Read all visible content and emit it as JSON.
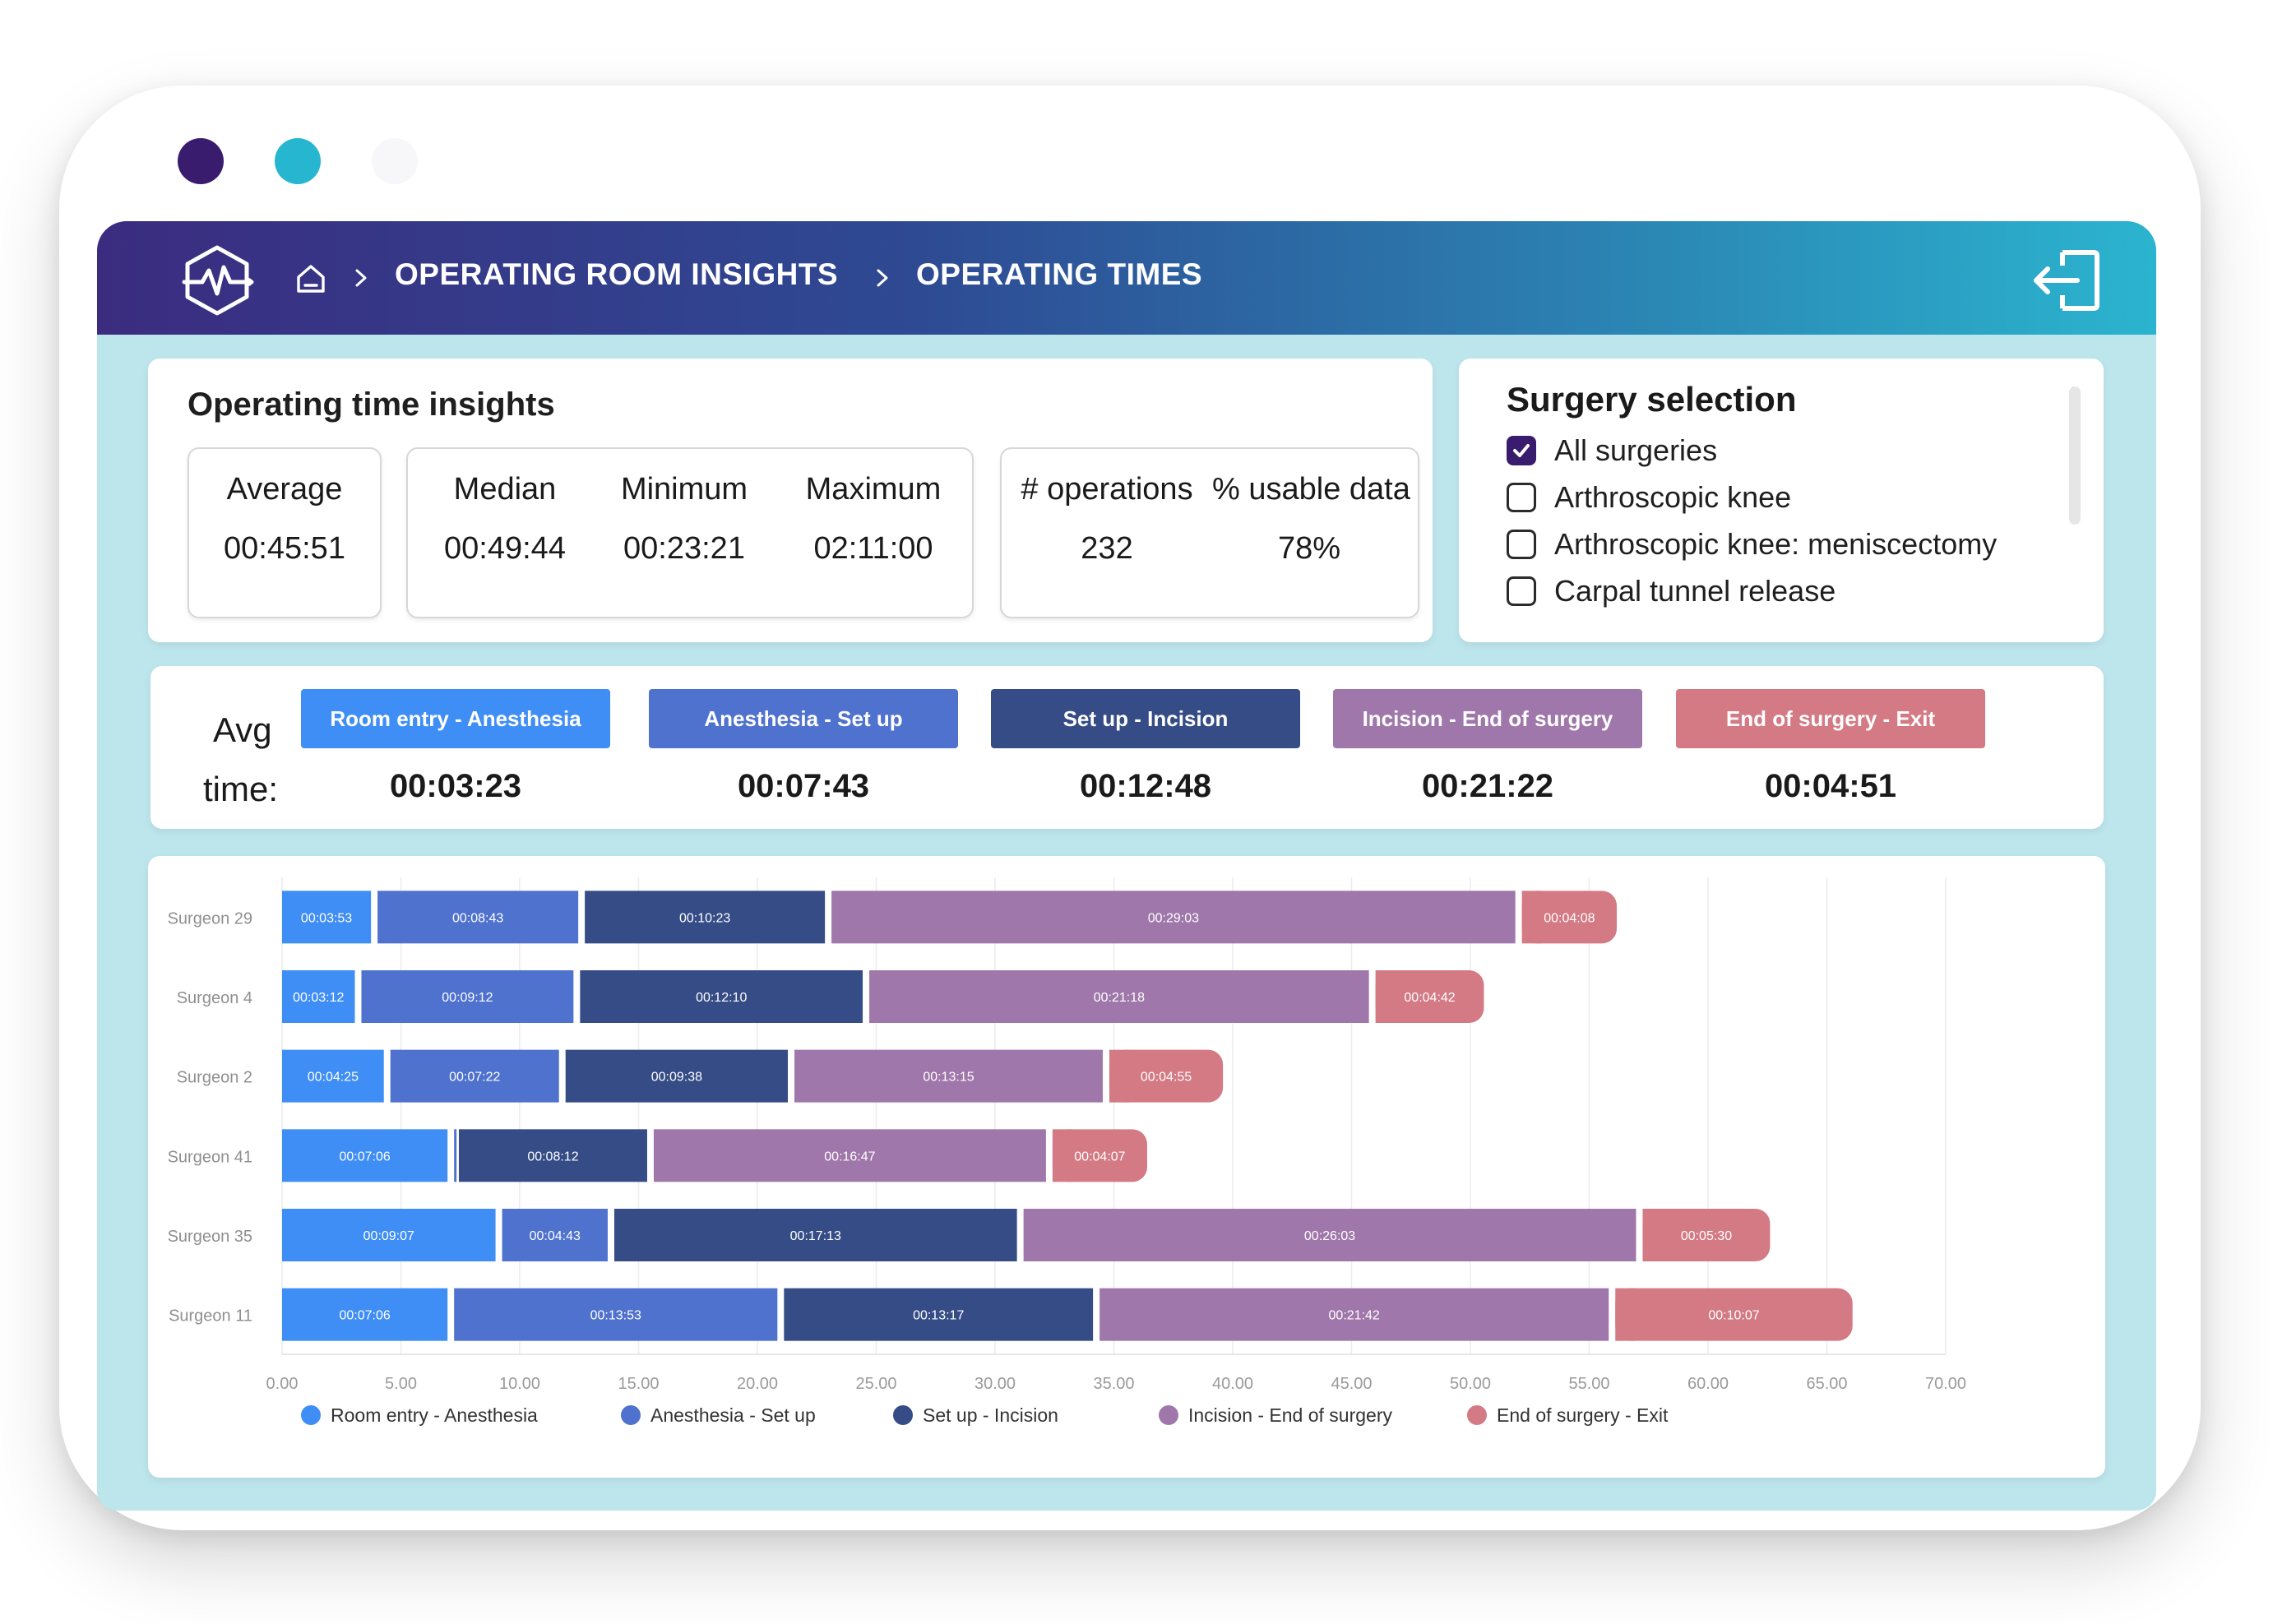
{
  "header": {
    "breadcrumb": [
      "OPERATING ROOM INSIGHTS",
      "OPERATING TIMES"
    ]
  },
  "insights": {
    "title": "Operating time insights",
    "stats": [
      {
        "label": "Average",
        "value": "00:45:51"
      },
      {
        "label": "Median",
        "value": "00:49:44"
      },
      {
        "label": "Minimum",
        "value": "00:23:21"
      },
      {
        "label": "Maximum",
        "value": "02:11:00"
      },
      {
        "label": "# operations",
        "value": "232"
      },
      {
        "label": "% usable data",
        "value": "78%"
      }
    ]
  },
  "selection": {
    "title": "Surgery selection",
    "items": [
      {
        "label": "All surgeries",
        "checked": true
      },
      {
        "label": "Arthroscopic knee",
        "checked": false
      },
      {
        "label": "Arthroscopic knee: meniscectomy",
        "checked": false
      },
      {
        "label": "Carpal tunnel release",
        "checked": false
      }
    ]
  },
  "avg_times": {
    "label_line1": "Avg",
    "label_line2": "time:",
    "phases": [
      {
        "label": "Room entry - Anesthesia",
        "time": "00:03:23"
      },
      {
        "label": "Anesthesia - Set up",
        "time": "00:07:43"
      },
      {
        "label": "Set up -  Incision",
        "time": "00:12:48"
      },
      {
        "label": "Incision - End of surgery",
        "time": "00:21:22"
      },
      {
        "label": "End of surgery - Exit",
        "time": "00:04:51"
      }
    ]
  },
  "colors": {
    "room_entry": "#3f8ef5",
    "anesthesia": "#4f72cf",
    "setup": "#354c86",
    "incision": "#a077aa",
    "end": "#d47a84"
  },
  "chart_data": {
    "type": "bar",
    "orientation": "horizontal",
    "stacked": true,
    "categories": [
      "Surgeon 29",
      "Surgeon 4",
      "Surgeon 2",
      "Surgeon 41",
      "Surgeon 35",
      "Surgeon 11"
    ],
    "series": [
      {
        "name": "Room entry - Anesthesia",
        "values": [
          3.88,
          3.2,
          4.42,
          7.1,
          9.12,
          7.1
        ],
        "labels": [
          "00:03:53",
          "00:03:12",
          "00:04:25",
          "00:07:06",
          "00:09:07",
          "00:07:06"
        ]
      },
      {
        "name": "Anesthesia - Set up",
        "values": [
          8.72,
          9.2,
          7.37,
          0.2,
          4.72,
          13.88
        ],
        "labels": [
          "00:08:43",
          "00:09:12",
          "00:07:22",
          "",
          "00:04:43",
          "00:13:53"
        ]
      },
      {
        "name": "Set up -  Incision",
        "values": [
          10.38,
          12.17,
          9.63,
          8.2,
          17.22,
          13.28
        ],
        "labels": [
          "00:10:23",
          "00:12:10",
          "00:09:38",
          "00:08:12",
          "00:17:13",
          "00:13:17"
        ]
      },
      {
        "name": "Incision - End of surgery",
        "values": [
          29.05,
          21.3,
          13.25,
          16.78,
          26.05,
          21.7
        ],
        "labels": [
          "00:29:03",
          "00:21:18",
          "00:13:15",
          "00:16:47",
          "00:26:03",
          "00:21:42"
        ]
      },
      {
        "name": "End of surgery - Exit",
        "values": [
          4.13,
          4.7,
          4.92,
          4.12,
          5.5,
          10.12
        ],
        "labels": [
          "00:04:08",
          "00:04:42",
          "00:04:55",
          "00:04:07",
          "00:05:30",
          "00:10:07"
        ]
      }
    ],
    "xticks": [
      "0.00",
      "5.00",
      "10.00",
      "15.00",
      "20.00",
      "25.00",
      "30.00",
      "35.00",
      "40.00",
      "45.00",
      "50.00",
      "55.00",
      "60.00",
      "65.00",
      "70.00"
    ],
    "xlim": [
      0,
      70
    ],
    "grid": true,
    "legend_position": "bottom"
  }
}
